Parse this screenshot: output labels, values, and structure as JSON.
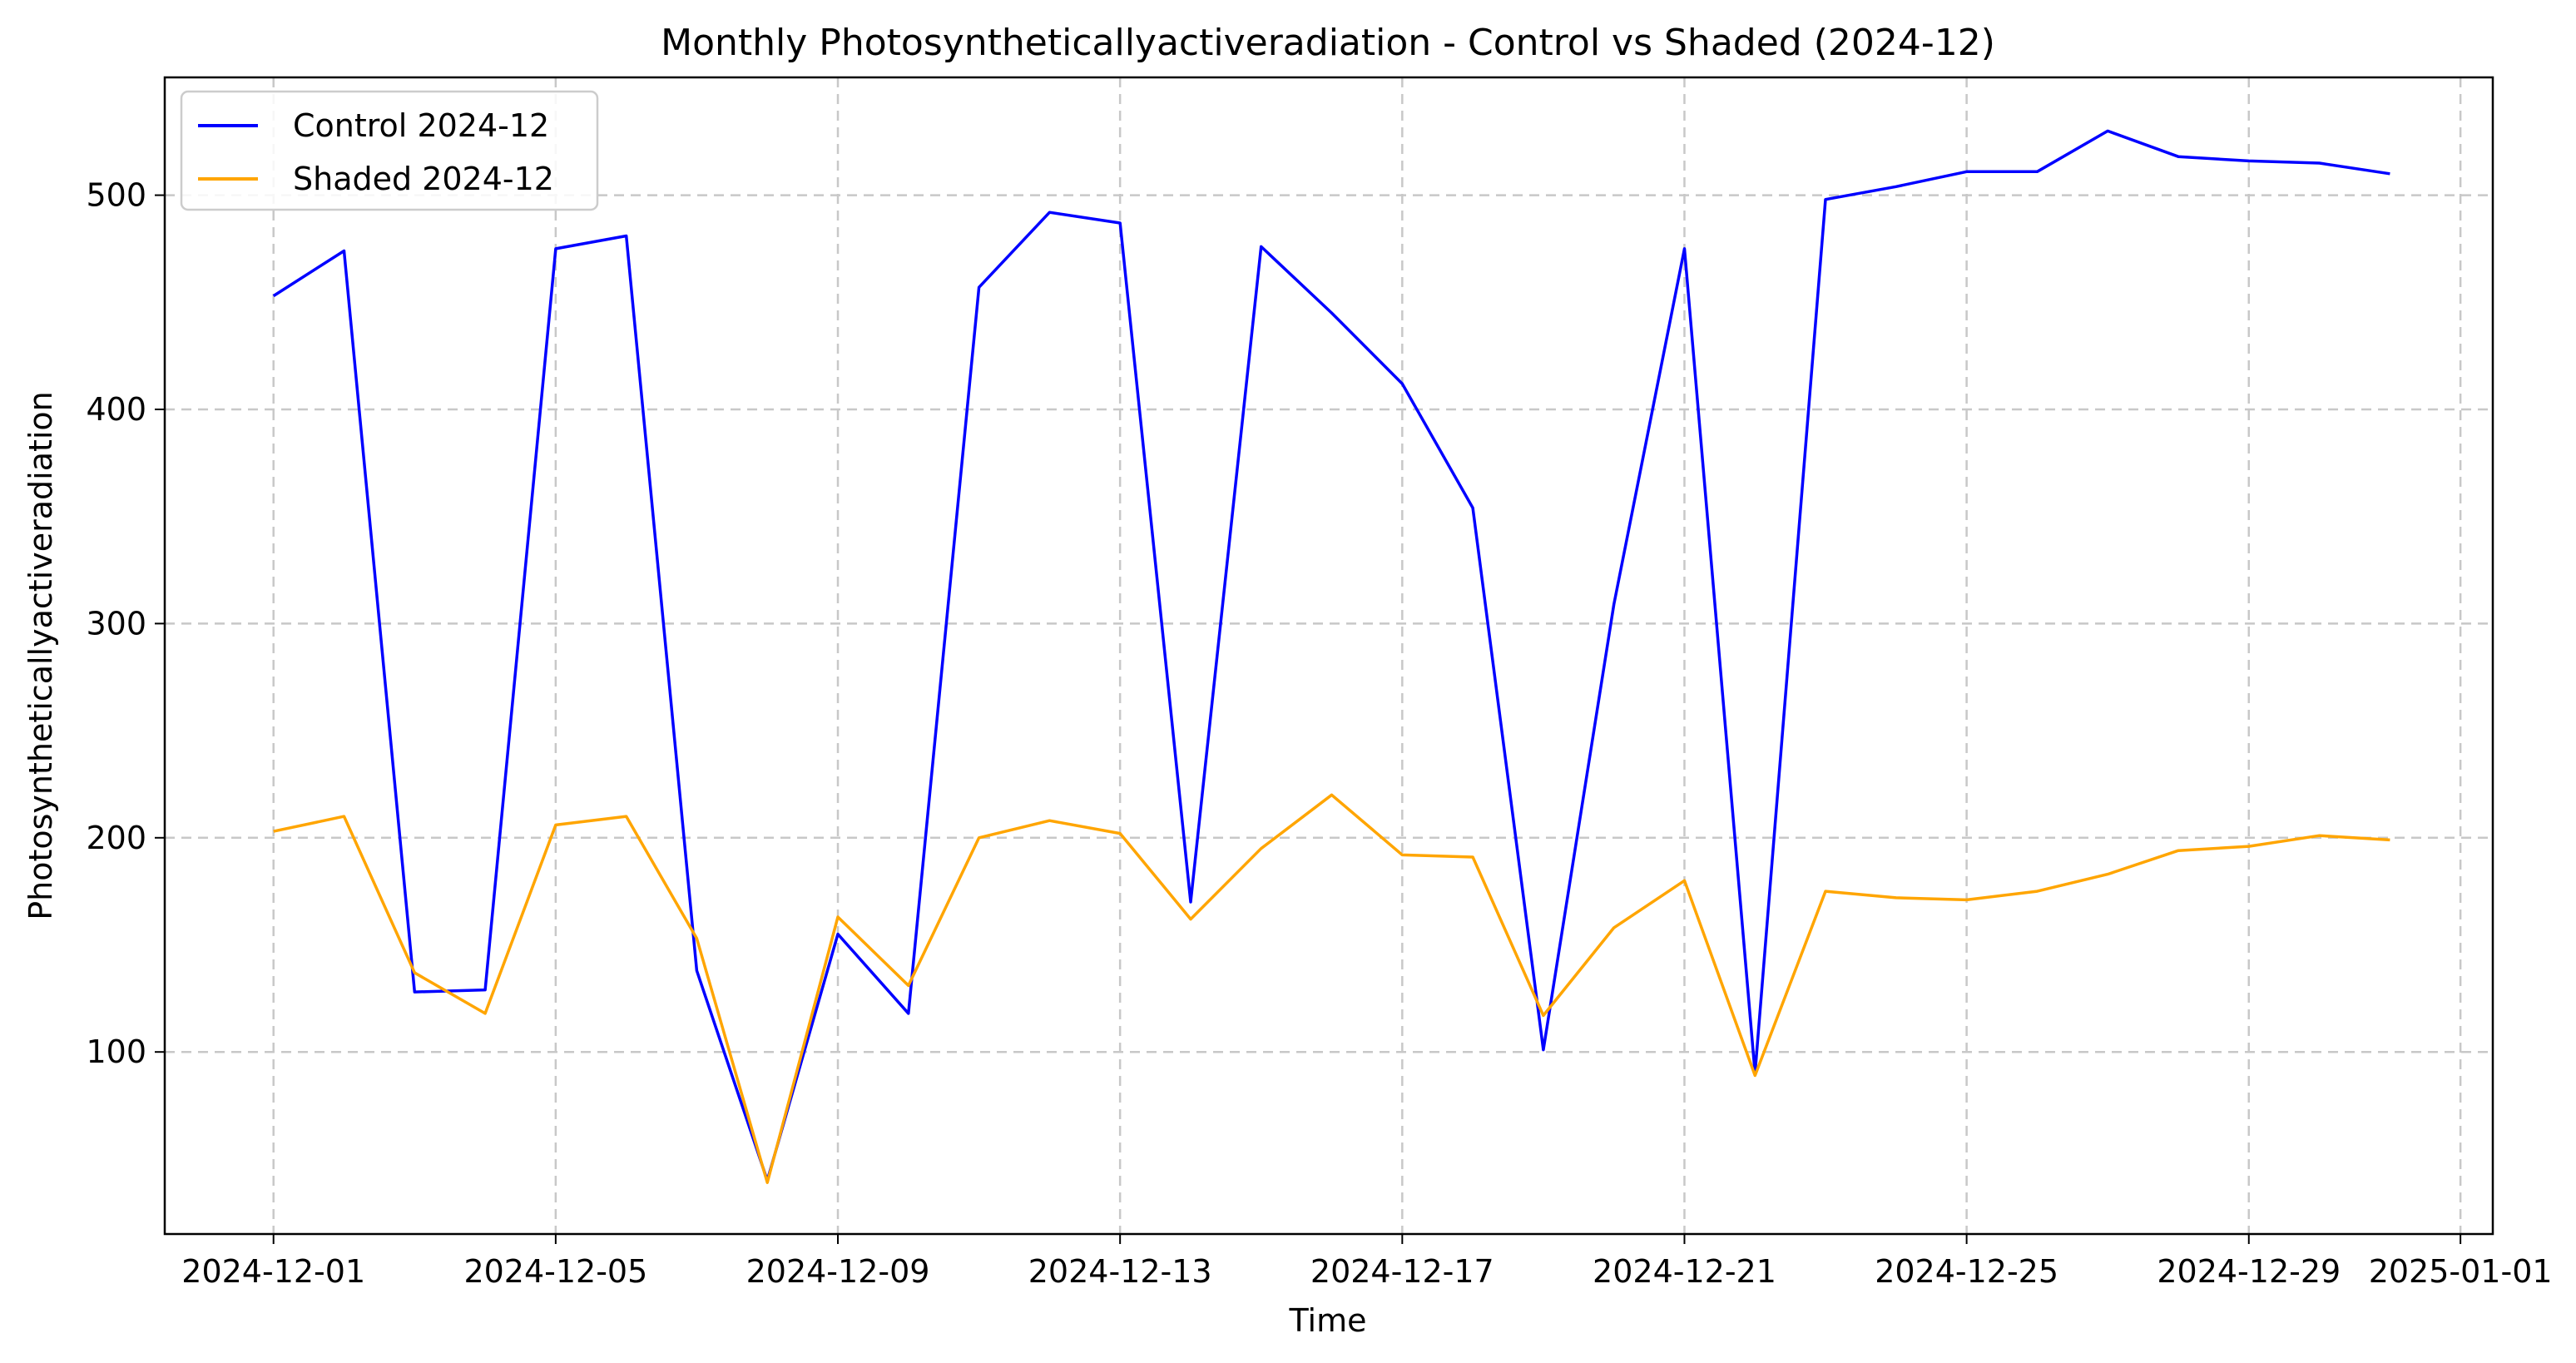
{
  "chart_data": {
    "type": "line",
    "title": "Monthly Photosyntheticallyactiveradiation - Control vs Shaded (2024-12)",
    "xlabel": "Time",
    "ylabel": "Photosyntheticallyactiveradiation",
    "x": [
      "2024-12-01",
      "2024-12-02",
      "2024-12-03",
      "2024-12-04",
      "2024-12-05",
      "2024-12-06",
      "2024-12-07",
      "2024-12-08",
      "2024-12-09",
      "2024-12-10",
      "2024-12-11",
      "2024-12-12",
      "2024-12-13",
      "2024-12-14",
      "2024-12-15",
      "2024-12-16",
      "2024-12-17",
      "2024-12-18",
      "2024-12-19",
      "2024-12-20",
      "2024-12-21",
      "2024-12-22",
      "2024-12-23",
      "2024-12-24",
      "2024-12-25",
      "2024-12-26",
      "2024-12-27",
      "2024-12-28",
      "2024-12-29",
      "2024-12-30",
      "2024-12-31"
    ],
    "xlim": [
      "2024-11-29T11:00",
      "2025-01-01T11:00"
    ],
    "x_ticks": [
      "2024-12-01",
      "2024-12-05",
      "2024-12-09",
      "2024-12-13",
      "2024-12-17",
      "2024-12-21",
      "2024-12-25",
      "2024-12-29",
      "2025-01-01"
    ],
    "ylim": [
      15,
      555
    ],
    "y_ticks": [
      100,
      200,
      300,
      400,
      500
    ],
    "grid": true,
    "legend_position": "top-left",
    "series": [
      {
        "name": "Control 2024-12",
        "color": "#0000ff",
        "values": [
          453,
          474,
          128,
          129,
          475,
          481,
          138,
          40,
          155,
          118,
          457,
          492,
          487,
          170,
          476,
          445,
          412,
          354,
          101,
          309,
          475,
          90,
          498,
          504,
          511,
          511,
          530,
          518,
          516,
          515,
          510
        ]
      },
      {
        "name": "Shaded 2024-12",
        "color": "#ffa500",
        "values": [
          203,
          210,
          137,
          118,
          206,
          210,
          153,
          39,
          163,
          131,
          200,
          208,
          202,
          162,
          195,
          220,
          192,
          191,
          117,
          158,
          180,
          89,
          175,
          172,
          171,
          175,
          183,
          194,
          196,
          201,
          199
        ]
      }
    ]
  }
}
